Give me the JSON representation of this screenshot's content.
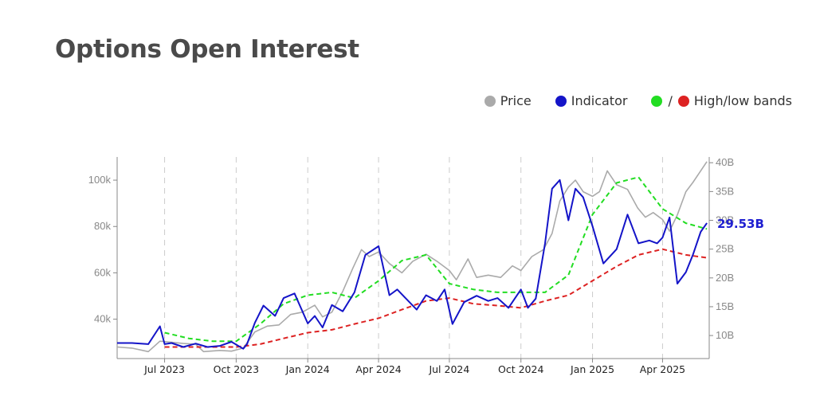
{
  "header": {
    "title": "Options Open Interest"
  },
  "legend": {
    "price_label": "Price",
    "indicator_label": "Indicator",
    "bands_label": "High/low bands",
    "bands_separator": "/"
  },
  "colors": {
    "price": "#aaaaaa",
    "indicator": "#1414c8",
    "high_band": "#22dd22",
    "low_band": "#dd2222",
    "grid": "#cccccc",
    "axis": "#888888"
  },
  "chart_data": {
    "type": "line",
    "title": "Options Open Interest",
    "x_type": "date",
    "xlim": [
      "2023-05-01",
      "2025-05-31"
    ],
    "x_ticks": [
      "2023-07-01",
      "2023-10-01",
      "2024-01-01",
      "2024-04-01",
      "2024-07-01",
      "2024-10-01",
      "2025-01-01",
      "2025-04-01"
    ],
    "x_tick_labels": [
      "Jul 2023",
      "Oct 2023",
      "Jan 2024",
      "Apr 2024",
      "Jul 2024",
      "Oct 2024",
      "Jan 2025",
      "Apr 2025"
    ],
    "left_axis": {
      "ylim": [
        23000,
        110000
      ],
      "ticks": [
        40000,
        60000,
        80000,
        100000
      ],
      "tick_labels": [
        "40k",
        "60k",
        "80k",
        "100k"
      ]
    },
    "right_axis": {
      "ylim": [
        6000000000,
        41000000000
      ],
      "ticks": [
        10000000000,
        15000000000,
        20000000000,
        25000000000,
        30000000000,
        35000000000,
        40000000000
      ],
      "tick_labels": [
        "10B",
        "15B",
        "20B",
        "25B",
        "30B",
        "35B",
        "40B"
      ]
    },
    "last_value_label": "29.53B",
    "grid": "vertical dashed at x ticks",
    "legend": "top-right",
    "series": [
      {
        "name": "Price",
        "axis": "left",
        "x": [
          "2023-05-01",
          "2023-05-20",
          "2023-06-10",
          "2023-06-25",
          "2023-07-10",
          "2023-07-25",
          "2023-08-10",
          "2023-08-20",
          "2023-09-10",
          "2023-09-25",
          "2023-10-10",
          "2023-10-25",
          "2023-11-10",
          "2023-11-25",
          "2023-12-10",
          "2023-12-25",
          "2024-01-10",
          "2024-01-20",
          "2024-02-01",
          "2024-02-15",
          "2024-02-28",
          "2024-03-10",
          "2024-03-20",
          "2024-04-01",
          "2024-04-15",
          "2024-05-01",
          "2024-05-15",
          "2024-06-01",
          "2024-06-15",
          "2024-07-01",
          "2024-07-10",
          "2024-07-25",
          "2024-08-05",
          "2024-08-20",
          "2024-09-05",
          "2024-09-20",
          "2024-10-01",
          "2024-10-15",
          "2024-10-30",
          "2024-11-10",
          "2024-11-20",
          "2024-12-01",
          "2024-12-10",
          "2024-12-20",
          "2025-01-01",
          "2025-01-10",
          "2025-01-20",
          "2025-02-01",
          "2025-02-15",
          "2025-02-28",
          "2025-03-10",
          "2025-03-20",
          "2025-04-01",
          "2025-04-10",
          "2025-04-20",
          "2025-05-01",
          "2025-05-10",
          "2025-05-20",
          "2025-05-28"
        ],
        "values": [
          28000,
          27500,
          26000,
          30500,
          30000,
          29500,
          29200,
          26000,
          26500,
          26200,
          27500,
          34500,
          37000,
          37500,
          42000,
          43000,
          46000,
          41000,
          43000,
          52000,
          62000,
          70000,
          67000,
          69000,
          64000,
          60000,
          65000,
          68000,
          65000,
          61000,
          57000,
          66000,
          58000,
          59000,
          58000,
          63000,
          61000,
          67000,
          70000,
          77000,
          91000,
          97000,
          100000,
          95000,
          93000,
          95000,
          104000,
          98000,
          96000,
          88000,
          84000,
          86000,
          83000,
          78000,
          85000,
          95000,
          99000,
          104000,
          108000
        ]
      },
      {
        "name": "Indicator",
        "axis": "right",
        "x": [
          "2023-05-01",
          "2023-05-20",
          "2023-06-10",
          "2023-06-25",
          "2023-07-01",
          "2023-07-10",
          "2023-07-25",
          "2023-08-10",
          "2023-08-25",
          "2023-09-10",
          "2023-09-25",
          "2023-10-10",
          "2023-10-15",
          "2023-10-25",
          "2023-11-05",
          "2023-11-20",
          "2023-12-01",
          "2023-12-15",
          "2024-01-01",
          "2024-01-10",
          "2024-01-20",
          "2024-02-01",
          "2024-02-15",
          "2024-03-01",
          "2024-03-15",
          "2024-04-01",
          "2024-04-15",
          "2024-04-25",
          "2024-05-05",
          "2024-05-20",
          "2024-06-01",
          "2024-06-15",
          "2024-06-25",
          "2024-07-05",
          "2024-07-20",
          "2024-08-05",
          "2024-08-20",
          "2024-09-01",
          "2024-09-15",
          "2024-10-01",
          "2024-10-10",
          "2024-10-20",
          "2024-11-01",
          "2024-11-10",
          "2024-11-20",
          "2024-12-01",
          "2024-12-10",
          "2024-12-20",
          "2025-01-01",
          "2025-01-15",
          "2025-02-01",
          "2025-02-15",
          "2025-03-01",
          "2025-03-15",
          "2025-03-25",
          "2025-04-01",
          "2025-04-10",
          "2025-04-20",
          "2025-05-01",
          "2025-05-10",
          "2025-05-20",
          "2025-05-28"
        ],
        "values": [
          8700000000,
          8700000000,
          8500000000,
          11600000000,
          8500000000,
          8700000000,
          8000000000,
          8600000000,
          8000000000,
          8200000000,
          8900000000,
          7700000000,
          8500000000,
          12200000000,
          15200000000,
          13400000000,
          16500000000,
          17300000000,
          12100000000,
          13400000000,
          11400000000,
          15300000000,
          14200000000,
          17500000000,
          24000000000,
          25500000000,
          17000000000,
          18000000000,
          16600000000,
          14500000000,
          17000000000,
          16000000000,
          18000000000,
          12000000000,
          15800000000,
          16900000000,
          16000000000,
          16500000000,
          14800000000,
          18000000000,
          14800000000,
          16400000000,
          26000000000,
          35500000000,
          37000000000,
          30000000000,
          35500000000,
          34000000000,
          29000000000,
          22500000000,
          25000000000,
          31000000000,
          26000000000,
          26500000000,
          26000000000,
          27000000000,
          30500000000,
          19000000000,
          21000000000,
          24000000000,
          28000000000,
          29530000000
        ]
      },
      {
        "name": "High band",
        "axis": "right",
        "x": [
          "2023-07-01",
          "2023-08-01",
          "2023-09-01",
          "2023-10-01",
          "2023-11-01",
          "2023-12-01",
          "2024-01-01",
          "2024-02-01",
          "2024-03-01",
          "2024-04-01",
          "2024-05-01",
          "2024-06-01",
          "2024-07-01",
          "2024-08-01",
          "2024-09-01",
          "2024-10-01",
          "2024-11-01",
          "2024-12-01",
          "2025-01-01",
          "2025-02-01",
          "2025-03-01",
          "2025-04-01",
          "2025-05-01",
          "2025-05-28"
        ],
        "values": [
          10500000000,
          9500000000,
          9000000000,
          9000000000,
          12000000000,
          15500000000,
          17000000000,
          17500000000,
          16500000000,
          19500000000,
          23000000000,
          24000000000,
          19000000000,
          18000000000,
          17500000000,
          17500000000,
          17500000000,
          20500000000,
          31000000000,
          36500000000,
          37500000000,
          32000000000,
          29500000000,
          28500000000
        ]
      },
      {
        "name": "Low band",
        "axis": "right",
        "x": [
          "2023-07-01",
          "2023-08-01",
          "2023-09-01",
          "2023-10-01",
          "2023-11-01",
          "2023-12-01",
          "2024-01-01",
          "2024-02-01",
          "2024-03-01",
          "2024-04-01",
          "2024-05-01",
          "2024-06-01",
          "2024-07-01",
          "2024-08-01",
          "2024-09-01",
          "2024-10-01",
          "2024-11-01",
          "2024-12-01",
          "2025-01-01",
          "2025-02-01",
          "2025-03-01",
          "2025-04-01",
          "2025-05-01",
          "2025-05-28"
        ],
        "values": [
          8000000000,
          8000000000,
          8000000000,
          8000000000,
          8500000000,
          9500000000,
          10500000000,
          11000000000,
          12000000000,
          13000000000,
          14500000000,
          16000000000,
          16500000000,
          15500000000,
          15200000000,
          14800000000,
          16000000000,
          17000000000,
          19500000000,
          22000000000,
          24000000000,
          25000000000,
          24000000000,
          23500000000
        ]
      }
    ]
  }
}
